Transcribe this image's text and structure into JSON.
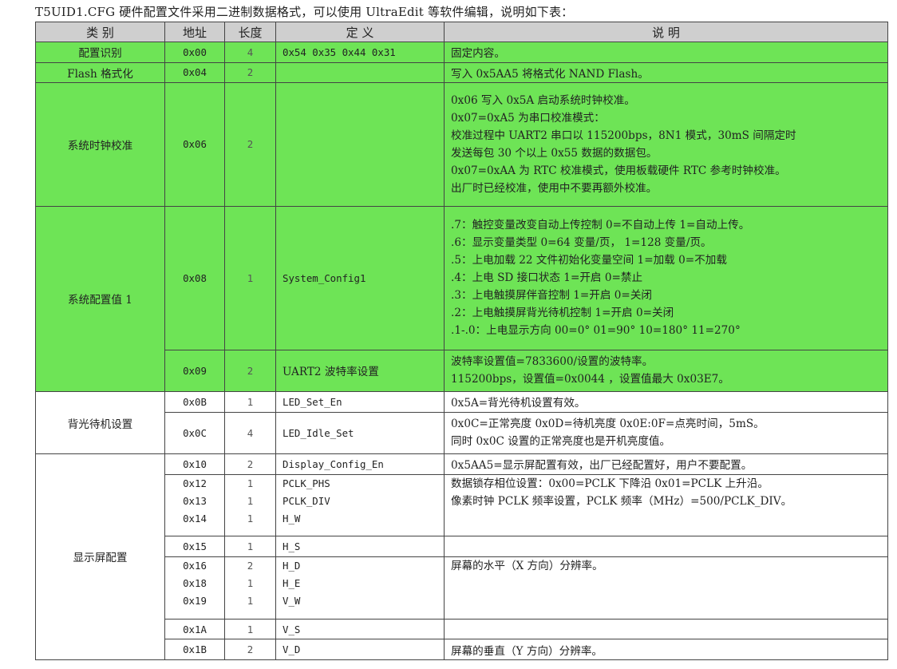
{
  "intro": "T5UID1.CFG 硬件配置文件采用二进制数据格式，可以使用 UltraEdit 等软件编辑，说明如下表：",
  "headers": [
    "类  别",
    "地址",
    "长度",
    "定  义",
    "说  明"
  ],
  "colors": {
    "highlight": "#6ee456",
    "header_bg": "#cfcfcf",
    "border": "#444444"
  },
  "rows": {
    "cfgid": {
      "category": "配置识别",
      "addr": "0x00",
      "len": "4",
      "def": "0x54 0x35 0x44 0x31",
      "desc": "固定内容。"
    },
    "flashfmt": {
      "category": "Flash 格式化",
      "addr": "0x04",
      "len": "2",
      "def": "",
      "desc": "写入 0x5AA5 将格式化 NAND Flash。"
    },
    "clock": {
      "category": "系统时钟校准",
      "addr": "0x06",
      "len": "2",
      "def": "",
      "desc": [
        "0x06 写入 0x5A 启动系统时钟校准。",
        "0x07=0xA5 为串口校准模式：",
        "校准过程中 UART2 串口以 115200bps，8N1 模式，30mS 间隔定时",
        "发送每包 30 个以上 0x55 数据的数据包。",
        "0x07=0xAA 为 RTC 校准模式，使用板载硬件 RTC 参考时钟校准。",
        "出厂时已经校准，使用中不要再额外校准。"
      ]
    },
    "sysconf": {
      "category": "系统配置值 1",
      "addr": "0x08",
      "len": "1",
      "def": "System_Config1",
      "desc": [
        ".7：触控变量改变自动上传控制 0=不自动上传 1=自动上传。",
        ".6：显示变量类型 0=64 变量/页， 1=128 变量/页。",
        ".5：上电加载 22 文件初始化变量空间 1=加载 0=不加载",
        ".4：上电 SD 接口状态 1=开启 0=禁止",
        ".3：上电触摸屏伴音控制 1=开启  0=关闭",
        ".2：上电触摸屏背光待机控制 1=开启  0=关闭",
        ".1-.0：上电显示方向 00=0°  01=90°  10=180°  11=270°"
      ]
    },
    "baud": {
      "addr": "0x09",
      "len": "2",
      "def": "UART2 波特率设置",
      "desc": [
        "波特率设置值=7833600/设置的波特率。",
        "115200bps，设置值=0x0044 ，设置值最大 0x03E7。"
      ]
    },
    "backlight": {
      "category": "背光待机设置",
      "set_en": {
        "addr": "0x0B",
        "len": "1",
        "def": "LED_Set_En",
        "desc": "0x5A=背光待机设置有效。"
      },
      "idle_set": {
        "addr": "0x0C",
        "len": "4",
        "def": "LED_Idle_Set",
        "desc": [
          "0x0C=正常亮度  0x0D=待机亮度  0x0E:0F=点亮时间，5mS。",
          "同时 0x0C 设置的正常亮度也是开机亮度值。"
        ]
      }
    },
    "display": {
      "category": "显示屏配置",
      "config_en": {
        "addr": "0x10",
        "len": "2",
        "def": "Display_Config_En",
        "desc": "0x5AA5=显示屏配置有效，出厂已经配置好，用户不要配置。"
      },
      "pclk": {
        "addrs": [
          "0x12",
          "0x13",
          "0x14"
        ],
        "lens": [
          "1",
          "1",
          "1"
        ],
        "defs": [
          "PCLK_PHS",
          "PCLK_DIV",
          "H_W"
        ],
        "desc": [
          "数据锁存相位设置：0x00=PCLK 下降沿  0x01=PCLK 上升沿。",
          "像素时钟 PCLK 频率设置，PCLK 频率（MHz）=500/PCLK_DIV。"
        ]
      },
      "hs": {
        "addr": "0x15",
        "len": "1",
        "def": "H_S",
        "desc": ""
      },
      "horiz": {
        "addrs": [
          "0x16",
          "0x18",
          "0x19"
        ],
        "lens": [
          "2",
          "1",
          "1"
        ],
        "defs": [
          "H_D",
          "H_E",
          "V_W"
        ],
        "desc": "屏幕的水平（X 方向）分辨率。"
      },
      "vs": {
        "addr": "0x1A",
        "len": "1",
        "def": "V_S",
        "desc": ""
      },
      "vd": {
        "addr": "0x1B",
        "len": "2",
        "def": "V_D",
        "desc": "屏幕的垂直（Y 方向）分辨率。"
      }
    }
  }
}
